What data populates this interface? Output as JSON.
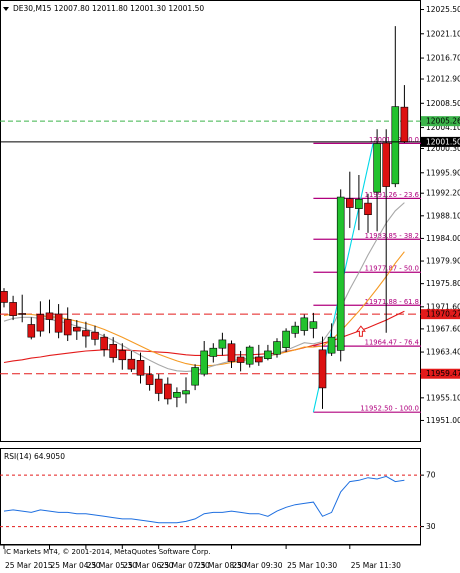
{
  "header": {
    "symbol_text": "DE30,M15  12007.80  12011.80  12001.30  12001.50",
    "dropdown_icon": "triangle-down-icon"
  },
  "footer": {
    "copyright": "IC Markets MT4, © 2001-2014, MetaQuotes Software Corp."
  },
  "chart_data": [
    {
      "type": "candlestick",
      "title": "DE30,M15  12007.80  12011.80  12001.30  12001.50",
      "ylim": [
        11948.0,
        12026.5
      ],
      "y_ticks": [
        "12025.50",
        "12021.10",
        "12016.70",
        "12012.90",
        "12008.50",
        "12004.10",
        "12000.30",
        "11995.90",
        "11992.20",
        "11988.10",
        "11984.00",
        "11979.90",
        "11975.80",
        "11971.60",
        "11967.60",
        "11963.40",
        "11959.30",
        "11955.10",
        "11951.00"
      ],
      "x_ticks": [
        "25 Mar 2015",
        "25 Mar 04:30",
        "25 Mar 05:30",
        "25 Mar 06:30",
        "25 Mar 07:30",
        "25 Mar 08:30",
        "25 Mar 09:30",
        "25 Mar 10:30",
        "25 Mar 11:30"
      ],
      "colors": {
        "bull": "#22c22e",
        "bear": "#dd1111",
        "wick": "#000000",
        "ma_red": "#e31b1b",
        "ma_orange": "#f59a23",
        "ma_gray": "#a8a8a8",
        "fib": "#b0007e",
        "bid_line": "#000000",
        "ask_line": "#3cb44b",
        "dashed_red": "#e31b1b"
      },
      "candles": [
        {
          "o": 11974.4,
          "h": 11975.0,
          "c": 11972.4,
          "l": 11971.5
        },
        {
          "o": 11972.4,
          "h": 11973.6,
          "c": 11970.0,
          "l": 11969.2
        },
        {
          "o": 11970.4,
          "h": 11973.8,
          "c": 11970.3,
          "l": 11968.8
        },
        {
          "o": 11968.4,
          "h": 11969.7,
          "c": 11966.1,
          "l": 11965.7
        },
        {
          "o": 11970.2,
          "h": 11972.6,
          "c": 11967.2,
          "l": 11966.2
        },
        {
          "o": 11970.5,
          "h": 11972.9,
          "c": 11969.3,
          "l": 11966.8
        },
        {
          "o": 11970.3,
          "h": 11972.1,
          "c": 11967.0,
          "l": 11965.9
        },
        {
          "o": 11969.3,
          "h": 11971.5,
          "c": 11966.5,
          "l": 11965.4
        },
        {
          "o": 11967.9,
          "h": 11969.2,
          "c": 11967.2,
          "l": 11965.6
        },
        {
          "o": 11967.3,
          "h": 11968.9,
          "c": 11966.3,
          "l": 11964.2
        },
        {
          "o": 11967.0,
          "h": 11968.2,
          "c": 11965.7,
          "l": 11964.6
        },
        {
          "o": 11966.1,
          "h": 11966.7,
          "c": 11963.9,
          "l": 11962.6
        },
        {
          "o": 11964.8,
          "h": 11966.1,
          "c": 11962.4,
          "l": 11961.5
        },
        {
          "o": 11963.7,
          "h": 11965.0,
          "c": 11962.0,
          "l": 11960.2
        },
        {
          "o": 11962.1,
          "h": 11963.6,
          "c": 11960.3,
          "l": 11959.8
        },
        {
          "o": 11961.9,
          "h": 11963.3,
          "c": 11959.2,
          "l": 11957.7
        },
        {
          "o": 11959.3,
          "h": 11960.9,
          "c": 11957.5,
          "l": 11956.4
        },
        {
          "o": 11958.5,
          "h": 11959.4,
          "c": 11955.9,
          "l": 11954.5
        },
        {
          "o": 11957.6,
          "h": 11958.8,
          "c": 11954.9,
          "l": 11953.9
        },
        {
          "o": 11955.2,
          "h": 11957.0,
          "c": 11956.1,
          "l": 11953.4
        },
        {
          "o": 11955.8,
          "h": 11958.8,
          "c": 11956.4,
          "l": 11954.1
        },
        {
          "o": 11957.4,
          "h": 11961.2,
          "c": 11960.6,
          "l": 11956.5
        },
        {
          "o": 11959.4,
          "h": 11965.4,
          "c": 11963.6,
          "l": 11959.0
        },
        {
          "o": 11962.6,
          "h": 11965.0,
          "c": 11964.1,
          "l": 11961.5
        },
        {
          "o": 11964.1,
          "h": 11966.9,
          "c": 11965.6,
          "l": 11962.8
        },
        {
          "o": 11964.9,
          "h": 11965.5,
          "c": 11961.7,
          "l": 11960.5
        },
        {
          "o": 11962.5,
          "h": 11963.6,
          "c": 11961.5,
          "l": 11959.9
        },
        {
          "o": 11961.2,
          "h": 11964.6,
          "c": 11964.3,
          "l": 11960.6
        },
        {
          "o": 11962.5,
          "h": 11964.7,
          "c": 11961.6,
          "l": 11960.9
        },
        {
          "o": 11962.2,
          "h": 11964.7,
          "c": 11963.6,
          "l": 11961.9
        },
        {
          "o": 11963.0,
          "h": 11965.9,
          "c": 11965.3,
          "l": 11962.4
        },
        {
          "o": 11964.2,
          "h": 11967.7,
          "c": 11967.2,
          "l": 11963.4
        },
        {
          "o": 11966.8,
          "h": 11968.9,
          "c": 11968.1,
          "l": 11966.0
        },
        {
          "o": 11967.3,
          "h": 11970.2,
          "c": 11969.6,
          "l": 11966.4
        },
        {
          "o": 11967.7,
          "h": 11970.5,
          "c": 11968.9,
          "l": 11965.9
        },
        {
          "o": 11963.8,
          "h": 11966.2,
          "c": 11956.9,
          "l": 11953.1
        },
        {
          "o": 11963.2,
          "h": 11968.6,
          "c": 11966.1,
          "l": 11962.7
        },
        {
          "o": 11963.7,
          "h": 11992.9,
          "c": 11991.5,
          "l": 11961.7
        },
        {
          "o": 11991.2,
          "h": 11996.1,
          "c": 11989.6,
          "l": 11985.9
        },
        {
          "o": 11989.4,
          "h": 11995.5,
          "c": 11991.1,
          "l": 11985.5
        },
        {
          "o": 11990.4,
          "h": 11992.1,
          "c": 11988.3,
          "l": 11985.0
        },
        {
          "o": 11992.4,
          "h": 12003.8,
          "c": 12001.2,
          "l": 11985.3
        },
        {
          "o": 12001.3,
          "h": 12003.8,
          "c": 11993.4,
          "l": 11966.9
        },
        {
          "o": 11993.9,
          "h": 12022.5,
          "c": 12007.9,
          "l": 11993.3
        },
        {
          "o": 12007.8,
          "h": 12011.8,
          "c": 12001.5,
          "l": 12001.3
        }
      ],
      "ma_red": [
        11961.5,
        11961.8,
        11962.0,
        11962.3,
        11962.5,
        11962.8,
        11963.0,
        11963.2,
        11963.4,
        11963.6,
        11963.7,
        11963.8,
        11963.8,
        11963.8,
        11963.7,
        11963.6,
        11963.5,
        11963.4,
        11963.3,
        11963.1,
        11962.9,
        11962.8,
        11962.8,
        11962.8,
        11962.8,
        11962.9,
        11962.9,
        11962.9,
        11963.0,
        11963.1,
        11963.2,
        11963.5,
        11963.8,
        11964.2,
        11964.6,
        11965.0,
        11965.4,
        11966.0,
        11966.6,
        11967.2,
        11967.8,
        11968.5,
        11969.2,
        11970.0,
        11970.8
      ],
      "ma_orange": [
        11970.0,
        11970.3,
        11970.3,
        11970.2,
        11970.0,
        11969.8,
        11969.7,
        11969.4,
        11969.0,
        11968.6,
        11968.1,
        11967.5,
        11966.8,
        11966.1,
        11965.3,
        11964.5,
        11963.7,
        11963.0,
        11962.4,
        11961.8,
        11961.3,
        11961.0,
        11960.9,
        11961.0,
        11961.2,
        11961.5,
        11961.8,
        11962.1,
        11962.4,
        11962.7,
        11963.0,
        11963.4,
        11963.8,
        11964.3,
        11964.3,
        11964.5,
        11965.6,
        11967.2,
        11969.0,
        11970.8,
        11972.8,
        11974.9,
        11977.1,
        11979.5,
        11981.6
      ],
      "ma_gray": [
        11969.0,
        11969.5,
        11969.7,
        11969.7,
        11969.5,
        11969.3,
        11969.0,
        11968.6,
        11968.1,
        11967.6,
        11967.0,
        11966.3,
        11965.5,
        11964.6,
        11963.7,
        11962.8,
        11961.9,
        11961.1,
        11960.4,
        11960.0,
        11959.9,
        11960.0,
        11960.4,
        11960.9,
        11961.4,
        11961.8,
        11962.1,
        11962.3,
        11962.5,
        11962.7,
        11963.1,
        11963.7,
        11964.4,
        11965.1,
        11964.9,
        11965.3,
        11967.6,
        11971.4,
        11974.8,
        11977.8,
        11981.0,
        11983.9,
        11986.8,
        11989.0,
        11990.5
      ],
      "fib_levels": [
        {
          "label": "12001.23 - 0.0",
          "value": 12001.23
        },
        {
          "label": "11991.26 - 23.6",
          "value": 11991.26
        },
        {
          "label": "11983.85 - 38.2",
          "value": 11983.85
        },
        {
          "label": "11977.87 - 50.0",
          "value": 11977.87
        },
        {
          "label": "11971.88 - 61.8",
          "value": 11971.88
        },
        {
          "label": "11964.47 - 76.4",
          "value": 11964.47
        },
        {
          "label": "11952.50 - 100.0",
          "value": 11952.5
        }
      ],
      "fib_trend": {
        "from_value": 11952.5,
        "to_value": 12001.23
      },
      "bid_line": {
        "label": "12001.50",
        "value": 12001.5
      },
      "ask_line": {
        "label": "12005.26",
        "value": 12005.26
      },
      "h_lines": [
        {
          "label": "11970.27",
          "value": 11970.27
        },
        {
          "label": "11959.47",
          "value": 11959.47
        }
      ],
      "arrow_value": 11967.0
    },
    {
      "type": "line",
      "title": "RSI(14) 64.9050",
      "ylim": [
        18,
        88
      ],
      "levels": [
        {
          "label": "70",
          "value": 70
        },
        {
          "label": "30",
          "value": 30
        }
      ],
      "values": [
        42,
        43,
        42,
        41,
        43,
        42,
        41,
        41,
        40,
        40,
        39,
        38,
        37,
        36,
        36,
        35,
        34,
        33,
        33,
        33,
        34,
        36,
        40,
        41,
        41,
        42,
        41,
        40,
        40,
        38,
        42,
        45,
        47,
        48,
        49,
        38,
        41,
        57,
        65,
        66,
        68,
        67,
        69,
        65,
        66
      ]
    }
  ]
}
